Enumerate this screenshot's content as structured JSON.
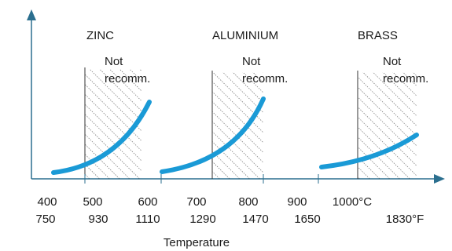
{
  "regions": [
    {
      "label": "ZINC",
      "note": [
        "Not",
        "recomm."
      ]
    },
    {
      "label": "ALUMINIUM",
      "note": [
        "Not",
        "recomm."
      ]
    },
    {
      "label": "BRASS",
      "note": [
        "Not",
        "recomm."
      ]
    }
  ],
  "axis": {
    "celsius": [
      "400",
      "500",
      "600",
      "700",
      "800",
      "900",
      "1000°C"
    ],
    "fahrenheit": [
      "750",
      "930",
      "1110",
      "1290",
      "1470",
      "1650",
      "1830°F"
    ],
    "title": "Temperature"
  }
}
